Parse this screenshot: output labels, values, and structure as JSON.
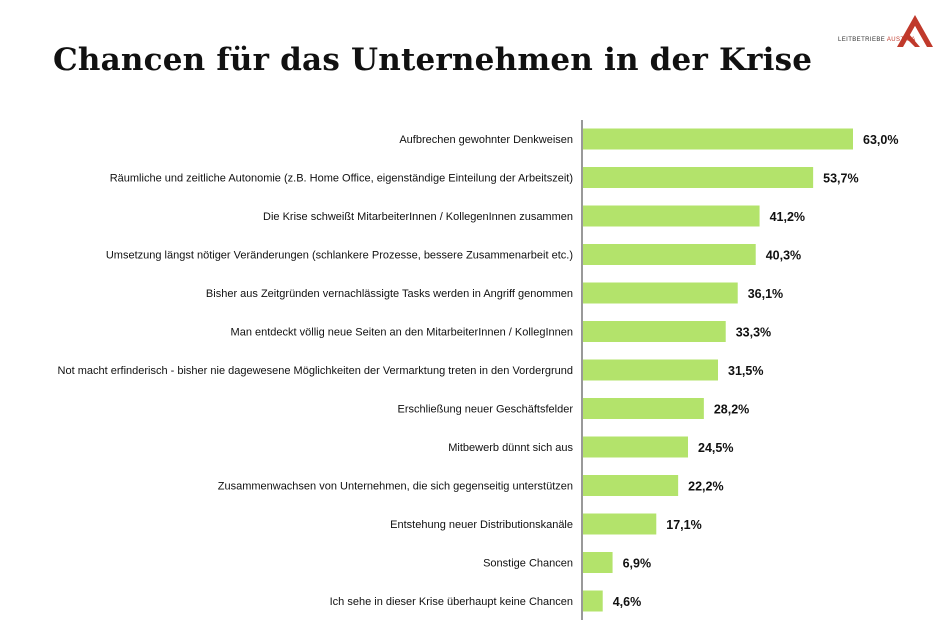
{
  "logo": {
    "text_prefix": "LEITBETRIEBE",
    "text_brand": "AUSTRIA"
  },
  "colors": {
    "bar": "#b3e36b",
    "axis": "#333333",
    "text": "#111111"
  },
  "chart_data": {
    "type": "bar",
    "orientation": "horizontal",
    "title": "Chancen für das Unternehmen in der Krise",
    "categories": [
      "Aufbrechen gewohnter Denkweisen",
      "Räumliche und zeitliche Autonomie (z.B. Home Office, eigenständige Einteilung der Arbeitszeit)",
      "Die Krise schweißt MitarbeiterInnen / KollegenInnen zusammen",
      "Umsetzung längst nötiger Veränderungen (schlankere Prozesse, bessere Zusammenarbeit etc.)",
      "Bisher aus Zeitgründen vernachlässigte Tasks werden in Angriff genommen",
      "Man entdeckt völlig neue Seiten an den MitarbeiterInnen / KollegInnen",
      "Not macht erfinderisch - bisher nie dagewesene Möglichkeiten der Vermarktung treten in den Vordergrund",
      "Erschließung neuer Geschäftsfelder",
      "Mitbewerb dünnt sich aus",
      "Zusammenwachsen von Unternehmen, die sich gegenseitig unterstützen",
      "Entstehung neuer Distributionskanäle",
      "Sonstige Chancen",
      "Ich sehe in dieser Krise überhaupt keine Chancen"
    ],
    "values": [
      63.0,
      53.7,
      41.2,
      40.3,
      36.1,
      33.3,
      31.5,
      28.2,
      24.5,
      22.2,
      17.1,
      6.9,
      4.6
    ],
    "value_labels": [
      "63,0%",
      "53,7%",
      "41,2%",
      "40,3%",
      "36,1%",
      "33,3%",
      "31,5%",
      "28,2%",
      "24,5%",
      "22,2%",
      "17,1%",
      "6,9%",
      "4,6%"
    ],
    "xlim": [
      0,
      70
    ],
    "grid": false,
    "legend": "none"
  }
}
